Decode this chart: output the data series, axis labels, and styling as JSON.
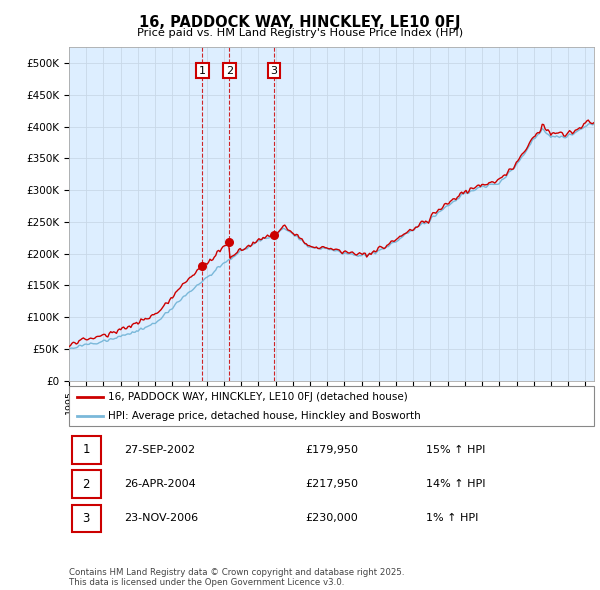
{
  "title": "16, PADDOCK WAY, HINCKLEY, LE10 0FJ",
  "subtitle": "Price paid vs. HM Land Registry's House Price Index (HPI)",
  "ylim": [
    0,
    525000
  ],
  "yticks": [
    0,
    50000,
    100000,
    150000,
    200000,
    250000,
    300000,
    350000,
    400000,
    450000,
    500000
  ],
  "purchases": [
    {
      "label": "1",
      "date": "27-SEP-2002",
      "price": 179950,
      "pct": "15%",
      "dir": "↑",
      "x_year": 2002.74
    },
    {
      "label": "2",
      "date": "26-APR-2004",
      "price": 217950,
      "pct": "14%",
      "dir": "↑",
      "x_year": 2004.32
    },
    {
      "label": "3",
      "date": "23-NOV-2006",
      "price": 230000,
      "pct": "1%",
      "dir": "↑",
      "x_year": 2006.9
    }
  ],
  "legend_line1": "16, PADDOCK WAY, HINCKLEY, LE10 0FJ (detached house)",
  "legend_line2": "HPI: Average price, detached house, Hinckley and Bosworth",
  "footnote": "Contains HM Land Registry data © Crown copyright and database right 2025.\nThis data is licensed under the Open Government Licence v3.0.",
  "hpi_color": "#7ab8d9",
  "price_color": "#cc0000",
  "grid_color": "#c8d8e8",
  "bg_color": "#ffffff",
  "chart_bg_color": "#ddeeff",
  "purchase_marker_color": "#cc0000",
  "vline_color": "#cc0000",
  "box_color": "#cc0000",
  "xmin": 1995.0,
  "xmax": 2025.5
}
